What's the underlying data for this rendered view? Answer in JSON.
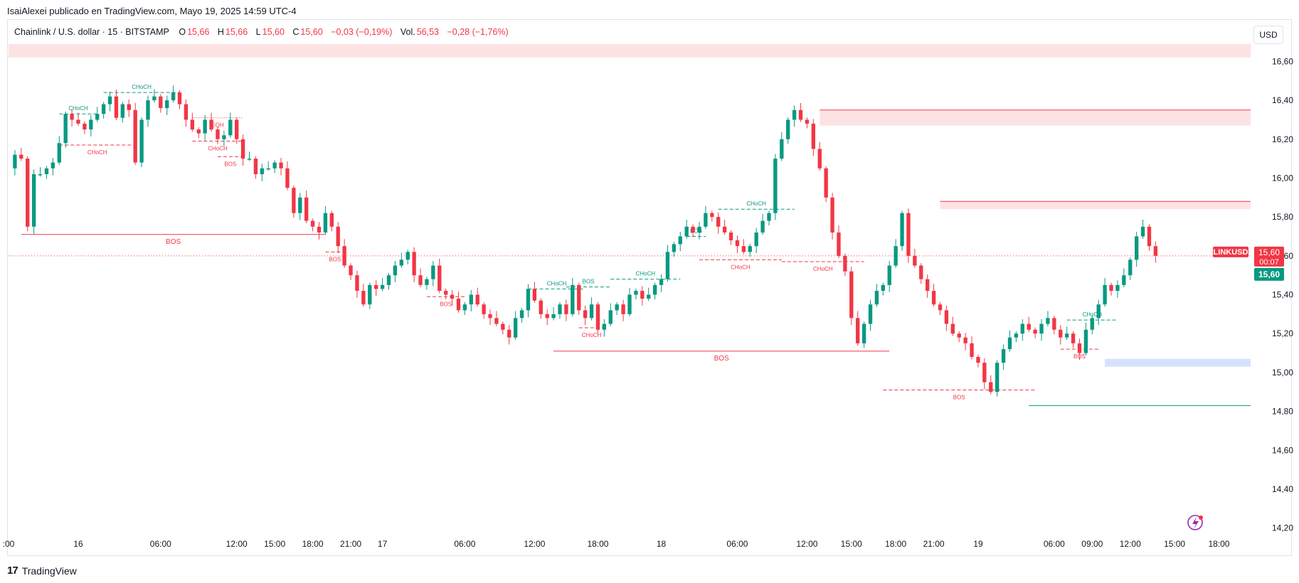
{
  "attribution": "IsaiAlexei publicado en TradingView.com, Mayo 19, 2025 14:59 UTC-4",
  "legend": {
    "symbol": "Chainlink / U.S. dollar · 15 · BITSTAMP",
    "open_label": "O",
    "open": "15,66",
    "high_label": "H",
    "high": "15,66",
    "low_label": "L",
    "low": "15,60",
    "close_label": "C",
    "close": "15,60",
    "change": "−0,03 (−0,19%)",
    "vol_label": "Vol.",
    "vol": "56,53",
    "vol_change": "−0,28 (−1,76%)"
  },
  "currency_button": "USD",
  "price_badge": {
    "ticker": "LINKUSD",
    "price": "15,60",
    "countdown": "00:07",
    "last": "15,60"
  },
  "footer": {
    "logo_mark": "17",
    "brand": "TradingView"
  },
  "colors": {
    "up": "#089981",
    "down": "#f23645",
    "supply_zone": "#fde2e4",
    "demand_zone": "#d6e1fb",
    "badge_ticker": "#f23645",
    "badge_last": "#089981"
  },
  "chart_data": {
    "type": "candlestick",
    "title": "Chainlink / U.S. dollar · 15 · BITSTAMP",
    "ylim": [
      14.1,
      16.66
    ],
    "y_ticks": [
      "16,60",
      "16,40",
      "16,20",
      "16,00",
      "15,80",
      "15,60",
      "15,40",
      "15,20",
      "15,00",
      "14,80",
      "14,60",
      "14,40",
      "14,20"
    ],
    "y_tick_values": [
      16.6,
      16.4,
      16.2,
      16.0,
      15.8,
      15.6,
      15.4,
      15.2,
      15.0,
      14.8,
      14.6,
      14.4,
      14.2
    ],
    "x_range": [
      0,
      196
    ],
    "x_ticks": [
      {
        "label": ":00",
        "x": 0
      },
      {
        "label": "16",
        "x": 11
      },
      {
        "label": "06:00",
        "x": 24
      },
      {
        "label": "12:00",
        "x": 36
      },
      {
        "label": "15:00",
        "x": 42
      },
      {
        "label": "18:00",
        "x": 48
      },
      {
        "label": "21:00",
        "x": 54
      },
      {
        "label": "17",
        "x": 59
      },
      {
        "label": "06:00",
        "x": 72
      },
      {
        "label": "12:00",
        "x": 83
      },
      {
        "label": "18:00",
        "x": 93
      },
      {
        "label": "18",
        "x": 103
      },
      {
        "label": "06:00",
        "x": 115
      },
      {
        "label": "12:00",
        "x": 126
      },
      {
        "label": "15:00",
        "x": 133
      },
      {
        "label": "18:00",
        "x": 140
      },
      {
        "label": "21:00",
        "x": 146
      },
      {
        "label": "19",
        "x": 153
      },
      {
        "label": "06:00",
        "x": 165
      },
      {
        "label": "09:00",
        "x": 171
      },
      {
        "label": "12:00",
        "x": 177
      },
      {
        "label": "15:00",
        "x": 184
      },
      {
        "label": "18:00",
        "x": 191
      }
    ],
    "close_path": [
      [
        0,
        16.05
      ],
      [
        1,
        16.12
      ],
      [
        2,
        16.1
      ],
      [
        3,
        15.75
      ],
      [
        4,
        16.02
      ],
      [
        5,
        16.02
      ],
      [
        6,
        16.05
      ],
      [
        7,
        16.08
      ],
      [
        8,
        16.18
      ],
      [
        9,
        16.33
      ],
      [
        10,
        16.3
      ],
      [
        11,
        16.28
      ],
      [
        12,
        16.25
      ],
      [
        13,
        16.3
      ],
      [
        14,
        16.33
      ],
      [
        15,
        16.38
      ],
      [
        16,
        16.42
      ],
      [
        17,
        16.31
      ],
      [
        18,
        16.38
      ],
      [
        19,
        16.35
      ],
      [
        20,
        16.08
      ],
      [
        21,
        16.3
      ],
      [
        22,
        16.4
      ],
      [
        23,
        16.42
      ],
      [
        24,
        16.36
      ],
      [
        25,
        16.4
      ],
      [
        26,
        16.44
      ],
      [
        27,
        16.38
      ],
      [
        28,
        16.3
      ],
      [
        29,
        16.25
      ],
      [
        30,
        16.23
      ],
      [
        31,
        16.3
      ],
      [
        32,
        16.25
      ],
      [
        33,
        16.2
      ],
      [
        34,
        16.22
      ],
      [
        35,
        16.3
      ],
      [
        36,
        16.2
      ],
      [
        37,
        16.1
      ],
      [
        38,
        16.1
      ],
      [
        39,
        16.02
      ],
      [
        40,
        16.05
      ],
      [
        41,
        16.05
      ],
      [
        42,
        16.08
      ],
      [
        43,
        16.05
      ],
      [
        44,
        15.95
      ],
      [
        45,
        15.82
      ],
      [
        46,
        15.9
      ],
      [
        47,
        15.78
      ],
      [
        48,
        15.75
      ],
      [
        49,
        15.72
      ],
      [
        50,
        15.82
      ],
      [
        51,
        15.75
      ],
      [
        52,
        15.65
      ],
      [
        53,
        15.55
      ],
      [
        54,
        15.5
      ],
      [
        55,
        15.42
      ],
      [
        56,
        15.35
      ],
      [
        57,
        15.45
      ],
      [
        58,
        15.43
      ],
      [
        59,
        15.45
      ],
      [
        60,
        15.5
      ],
      [
        61,
        15.55
      ],
      [
        62,
        15.58
      ],
      [
        63,
        15.62
      ],
      [
        64,
        15.5
      ],
      [
        65,
        15.45
      ],
      [
        66,
        15.48
      ],
      [
        67,
        15.55
      ],
      [
        68,
        15.42
      ],
      [
        69,
        15.4
      ],
      [
        70,
        15.38
      ],
      [
        71,
        15.32
      ],
      [
        72,
        15.35
      ],
      [
        73,
        15.4
      ],
      [
        74,
        15.35
      ],
      [
        75,
        15.3
      ],
      [
        76,
        15.28
      ],
      [
        77,
        15.25
      ],
      [
        78,
        15.22
      ],
      [
        79,
        15.18
      ],
      [
        80,
        15.28
      ],
      [
        81,
        15.32
      ],
      [
        82,
        15.43
      ],
      [
        83,
        15.37
      ],
      [
        84,
        15.3
      ],
      [
        85,
        15.28
      ],
      [
        86,
        15.3
      ],
      [
        87,
        15.35
      ],
      [
        88,
        15.3
      ],
      [
        89,
        15.45
      ],
      [
        90,
        15.32
      ],
      [
        91,
        15.28
      ],
      [
        92,
        15.35
      ],
      [
        93,
        15.22
      ],
      [
        94,
        15.25
      ],
      [
        95,
        15.32
      ],
      [
        96,
        15.35
      ],
      [
        97,
        15.3
      ],
      [
        98,
        15.4
      ],
      [
        99,
        15.42
      ],
      [
        100,
        15.38
      ],
      [
        101,
        15.4
      ],
      [
        102,
        15.45
      ],
      [
        103,
        15.48
      ],
      [
        104,
        15.62
      ],
      [
        105,
        15.66
      ],
      [
        106,
        15.7
      ],
      [
        107,
        15.75
      ],
      [
        108,
        15.72
      ],
      [
        109,
        15.75
      ],
      [
        110,
        15.82
      ],
      [
        111,
        15.8
      ],
      [
        112,
        15.75
      ],
      [
        113,
        15.72
      ],
      [
        114,
        15.68
      ],
      [
        115,
        15.65
      ],
      [
        116,
        15.62
      ],
      [
        117,
        15.65
      ],
      [
        118,
        15.72
      ],
      [
        119,
        15.78
      ],
      [
        120,
        15.82
      ],
      [
        121,
        16.1
      ],
      [
        122,
        16.2
      ],
      [
        123,
        16.3
      ],
      [
        124,
        16.35
      ],
      [
        125,
        16.3
      ],
      [
        126,
        16.28
      ],
      [
        127,
        16.15
      ],
      [
        128,
        16.05
      ],
      [
        129,
        15.9
      ],
      [
        130,
        15.72
      ],
      [
        131,
        15.6
      ],
      [
        132,
        15.52
      ],
      [
        133,
        15.28
      ],
      [
        134,
        15.15
      ],
      [
        135,
        15.25
      ],
      [
        136,
        15.35
      ],
      [
        137,
        15.42
      ],
      [
        138,
        15.45
      ],
      [
        139,
        15.55
      ],
      [
        140,
        15.65
      ],
      [
        141,
        15.82
      ],
      [
        142,
        15.6
      ],
      [
        143,
        15.55
      ],
      [
        144,
        15.48
      ],
      [
        145,
        15.42
      ],
      [
        146,
        15.35
      ],
      [
        147,
        15.32
      ],
      [
        148,
        15.25
      ],
      [
        149,
        15.2
      ],
      [
        150,
        15.18
      ],
      [
        151,
        15.15
      ],
      [
        152,
        15.08
      ],
      [
        153,
        15.05
      ],
      [
        154,
        14.95
      ],
      [
        155,
        14.9
      ],
      [
        156,
        15.05
      ],
      [
        157,
        15.12
      ],
      [
        158,
        15.18
      ],
      [
        159,
        15.2
      ],
      [
        160,
        15.25
      ],
      [
        161,
        15.22
      ],
      [
        162,
        15.2
      ],
      [
        163,
        15.25
      ],
      [
        164,
        15.28
      ],
      [
        165,
        15.22
      ],
      [
        166,
        15.18
      ],
      [
        167,
        15.2
      ],
      [
        168,
        15.15
      ],
      [
        169,
        15.1
      ],
      [
        170,
        15.22
      ],
      [
        171,
        15.28
      ],
      [
        172,
        15.35
      ],
      [
        173,
        15.45
      ],
      [
        174,
        15.42
      ],
      [
        175,
        15.45
      ],
      [
        176,
        15.5
      ],
      [
        177,
        15.58
      ],
      [
        178,
        15.7
      ],
      [
        179,
        15.75
      ],
      [
        180,
        15.65
      ],
      [
        181,
        15.6
      ]
    ],
    "zones": [
      {
        "kind": "supply",
        "x0": 0,
        "x1": 196,
        "y0": 16.62,
        "y1": 16.69
      },
      {
        "kind": "supply",
        "x0": 128,
        "x1": 196,
        "y0": 16.27,
        "y1": 16.35
      },
      {
        "kind": "supply",
        "x0": 147,
        "x1": 196,
        "y0": 15.84,
        "y1": 15.88
      },
      {
        "kind": "demand",
        "x0": 173,
        "x1": 196,
        "y0": 15.03,
        "y1": 15.07
      }
    ],
    "structure_lines": [
      {
        "label": "CHoCH",
        "color": "up",
        "style": "dashed",
        "x0": 8,
        "x1": 14,
        "y": 16.33
      },
      {
        "label": "CHoCH",
        "color": "down",
        "style": "dashed",
        "x0": 8,
        "x1": 20,
        "y": 16.17
      },
      {
        "label": "CHoCH",
        "color": "up",
        "style": "dashed",
        "x0": 15,
        "x1": 27,
        "y": 16.44
      },
      {
        "label": "EQH",
        "color": "down",
        "style": "dotted",
        "x0": 29,
        "x1": 37,
        "y": 16.31
      },
      {
        "label": "CHoCH",
        "color": "down",
        "style": "dashed",
        "x0": 29,
        "x1": 37,
        "y": 16.19
      },
      {
        "label": "BOS",
        "color": "down",
        "style": "dashed",
        "x0": 33,
        "x1": 37,
        "y": 16.11
      },
      {
        "label": "BOS",
        "color": "down",
        "style": "solid",
        "x0": 2,
        "x1": 50,
        "y": 15.71
      },
      {
        "label": "BOS",
        "color": "down",
        "style": "dashed",
        "x0": 50,
        "x1": 53,
        "y": 15.62
      },
      {
        "label": "BOS",
        "color": "down",
        "style": "dashed",
        "x0": 66,
        "x1": 72,
        "y": 15.39
      },
      {
        "label": "CHoCH",
        "color": "up",
        "style": "dashed",
        "x0": 82,
        "x1": 91,
        "y": 15.43
      },
      {
        "label": "BOS",
        "color": "up",
        "style": "dashed",
        "x0": 88,
        "x1": 95,
        "y": 15.44
      },
      {
        "label": "CHoCH",
        "color": "up",
        "style": "dashed",
        "x0": 95,
        "x1": 106,
        "y": 15.48
      },
      {
        "label": "CHoCH",
        "color": "down",
        "style": "dashed",
        "x0": 90,
        "x1": 94,
        "y": 15.23
      },
      {
        "label": "BOS",
        "color": "down",
        "style": "solid",
        "x0": 86,
        "x1": 139,
        "y": 15.11
      },
      {
        "label": "BOS",
        "color": "up",
        "style": "dashed",
        "x0": 107,
        "x1": 110,
        "y": 15.7
      },
      {
        "label": "CHoCH",
        "color": "up",
        "style": "dashed",
        "x0": 112,
        "x1": 124,
        "y": 15.84
      },
      {
        "label": "CHoCH",
        "color": "down",
        "style": "dashed",
        "x0": 109,
        "x1": 122,
        "y": 15.58
      },
      {
        "label": "CHoCH",
        "color": "down",
        "style": "dashed",
        "x0": 122,
        "x1": 135,
        "y": 15.57
      },
      {
        "label": "BOS",
        "color": "down",
        "style": "dashed",
        "x0": 138,
        "x1": 162,
        "y": 14.91
      },
      {
        "label": "CHoCH",
        "color": "up",
        "style": "dashed",
        "x0": 167,
        "x1": 175,
        "y": 15.27
      },
      {
        "label": "BOS",
        "color": "down",
        "style": "dashed",
        "x0": 166,
        "x1": 172,
        "y": 15.12
      },
      {
        "label": "",
        "color": "up",
        "style": "solid",
        "x0": 161,
        "x1": 196,
        "y": 14.83
      }
    ],
    "current_price": 15.6
  }
}
